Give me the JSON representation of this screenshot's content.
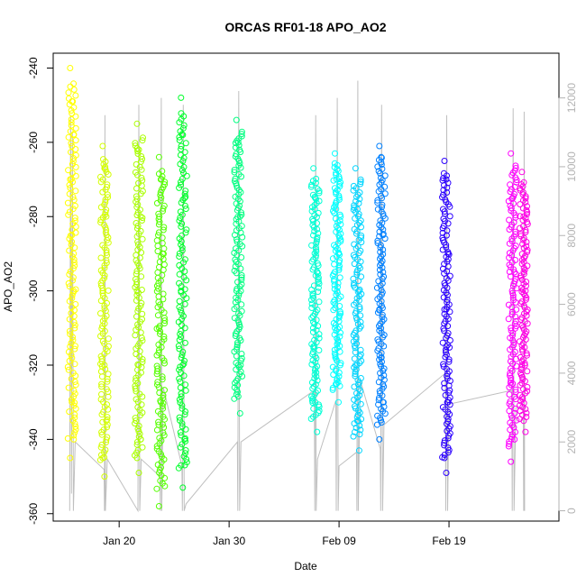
{
  "chart_data": {
    "type": "scatter",
    "title": "ORCAS RF01-18 APO_AO2",
    "xlabel": "Date",
    "ylabel": "APO_AO2",
    "x_axis": {
      "start": "2016-01-14",
      "end": "2016-02-29",
      "ticks": [
        {
          "date": "2016-01-20",
          "label": "Jan 20"
        },
        {
          "date": "2016-01-30",
          "label": "Jan 30"
        },
        {
          "date": "2016-02-09",
          "label": "Feb 09"
        },
        {
          "date": "2016-02-19",
          "label": "Feb 19"
        }
      ]
    },
    "y_left": {
      "ylim": [
        -362,
        -236
      ],
      "ticks": [
        -240,
        -260,
        -280,
        -300,
        -320,
        -340,
        -360
      ]
    },
    "y_right": {
      "ylim": [
        -300,
        13300
      ],
      "ticks": [
        0,
        2000,
        4000,
        6000,
        8000,
        10000,
        12000
      ],
      "color": "#b3b3b3"
    },
    "grid": false,
    "flights": [
      {
        "date": "2016-01-15T17:00",
        "color": "#FFFF00",
        "points": [
          {
            "y": -240
          },
          {
            "y": -249
          },
          {
            "y": -258
          },
          {
            "y": -270
          },
          {
            "y": -285
          },
          {
            "y": -300
          },
          {
            "y": -315
          },
          {
            "y": -330
          },
          {
            "y": -340
          },
          {
            "y": -345
          }
        ]
      },
      {
        "date": "2016-01-18T16:00",
        "color": "#D4FF00",
        "points": [
          {
            "y": -261
          },
          {
            "y": -267
          },
          {
            "y": -280
          },
          {
            "y": -300
          },
          {
            "y": -320
          },
          {
            "y": -335
          },
          {
            "y": -345
          },
          {
            "y": -350
          }
        ]
      },
      {
        "date": "2016-01-21T19:00",
        "color": "#AAFF00",
        "points": [
          {
            "y": -255
          },
          {
            "y": -262
          },
          {
            "y": -280
          },
          {
            "y": -300
          },
          {
            "y": -320
          },
          {
            "y": -340
          },
          {
            "y": -345
          },
          {
            "y": -349
          }
        ]
      },
      {
        "date": "2016-01-23T19:00",
        "color": "#55FF00",
        "points": [
          {
            "y": -264
          },
          {
            "y": -270
          },
          {
            "y": -290
          },
          {
            "y": -310
          },
          {
            "y": -330
          },
          {
            "y": -336
          },
          {
            "y": -358
          }
        ]
      },
      {
        "date": "2016-01-25T19:00",
        "color": "#00FF2B",
        "points": [
          {
            "y": -248
          },
          {
            "y": -258
          },
          {
            "y": -275
          },
          {
            "y": -300
          },
          {
            "y": -320
          },
          {
            "y": -340
          },
          {
            "y": -347
          },
          {
            "y": -353
          }
        ]
      },
      {
        "date": "2016-01-30T20:00",
        "color": "#00FF80",
        "points": [
          {
            "y": -254
          },
          {
            "y": -260
          },
          {
            "y": -280
          },
          {
            "y": -300
          },
          {
            "y": -320
          },
          {
            "y": -333
          }
        ]
      },
      {
        "date": "2016-02-06T20:00",
        "color": "#00FFD5",
        "points": [
          {
            "y": -267
          },
          {
            "y": -275
          },
          {
            "y": -295
          },
          {
            "y": -315
          },
          {
            "y": -330
          },
          {
            "y": -338
          }
        ]
      },
      {
        "date": "2016-02-08T19:00",
        "color": "#00FFFF",
        "points": [
          {
            "y": -263
          },
          {
            "y": -270
          },
          {
            "y": -290
          },
          {
            "y": -310
          },
          {
            "y": -325
          },
          {
            "y": -330
          }
        ]
      },
      {
        "date": "2016-02-10T16:00",
        "color": "#00D5FF",
        "points": [
          {
            "y": -267
          },
          {
            "y": -278
          },
          {
            "y": -300
          },
          {
            "y": -320
          },
          {
            "y": -335
          },
          {
            "y": -343
          }
        ]
      },
      {
        "date": "2016-02-12T20:00",
        "color": "#0080FF",
        "points": [
          {
            "y": -261
          },
          {
            "y": -264
          },
          {
            "y": -285
          },
          {
            "y": -305
          },
          {
            "y": -318
          },
          {
            "y": -330
          },
          {
            "y": -340
          }
        ]
      },
      {
        "date": "2016-02-18T18:00",
        "color": "#2B00FF",
        "points": [
          {
            "y": -265
          },
          {
            "y": -270
          },
          {
            "y": -290
          },
          {
            "y": -305
          },
          {
            "y": -315
          },
          {
            "y": -330
          },
          {
            "y": -345
          },
          {
            "y": -349
          }
        ]
      },
      {
        "date": "2016-02-24T19:00",
        "color": "#FF00FF",
        "points": [
          {
            "y": -263
          },
          {
            "y": -275
          },
          {
            "y": -295
          },
          {
            "y": -310
          },
          {
            "y": -325
          },
          {
            "y": -340
          },
          {
            "y": -346
          }
        ]
      },
      {
        "date": "2016-02-25T19:00",
        "color": "#FF00E6",
        "points": [
          {
            "y": -268
          },
          {
            "y": -280
          },
          {
            "y": -300
          },
          {
            "y": -320
          },
          {
            "y": -335
          },
          {
            "y": -338
          }
        ]
      }
    ],
    "altitude_series": {
      "name": "",
      "axis": "right",
      "color": "#bfbfbf",
      "points": [
        {
          "x": "2016-01-15T12:00",
          "y": 0
        },
        {
          "x": "2016-01-15T14:00",
          "y": 11500
        },
        {
          "x": "2016-01-15T16:00",
          "y": 500
        },
        {
          "x": "2016-01-15T18:00",
          "y": 11000
        },
        {
          "x": "2016-01-15T20:00",
          "y": 0
        },
        {
          "x": "2016-01-16T00:00",
          "y": 2000
        },
        {
          "x": "2016-01-18T15:00",
          "y": 1200
        },
        {
          "x": "2016-01-18T16:00",
          "y": 0
        },
        {
          "x": "2016-01-18T17:00",
          "y": 11500
        },
        {
          "x": "2016-01-18T18:00",
          "y": 0
        },
        {
          "x": "2016-01-18T22:00",
          "y": 1500
        },
        {
          "x": "2016-01-21T17:00",
          "y": 0
        },
        {
          "x": "2016-01-21T19:00",
          "y": 11800
        },
        {
          "x": "2016-01-21T21:00",
          "y": 0
        },
        {
          "x": "2016-01-22T00:00",
          "y": 1500
        },
        {
          "x": "2016-01-23T17:00",
          "y": 1000
        },
        {
          "x": "2016-01-23T18:00",
          "y": 0
        },
        {
          "x": "2016-01-23T20:00",
          "y": 12000
        },
        {
          "x": "2016-01-23T21:00",
          "y": 0
        },
        {
          "x": "2016-01-24T00:00",
          "y": 3600
        },
        {
          "x": "2016-01-25T17:00",
          "y": 1300
        },
        {
          "x": "2016-01-25T18:00",
          "y": 0
        },
        {
          "x": "2016-01-25T20:00",
          "y": 11800
        },
        {
          "x": "2016-01-25T22:00",
          "y": 0
        },
        {
          "x": "2016-01-26T02:00",
          "y": 200
        },
        {
          "x": "2016-01-30T18:00",
          "y": 2000
        },
        {
          "x": "2016-01-30T19:00",
          "y": 0
        },
        {
          "x": "2016-01-30T21:00",
          "y": 12200
        },
        {
          "x": "2016-01-30T23:00",
          "y": 0
        },
        {
          "x": "2016-01-31T02:00",
          "y": 2000
        },
        {
          "x": "2016-02-06T18:00",
          "y": 3500
        },
        {
          "x": "2016-02-06T19:00",
          "y": 0
        },
        {
          "x": "2016-02-06T21:00",
          "y": 11500
        },
        {
          "x": "2016-02-06T22:00",
          "y": 0
        },
        {
          "x": "2016-02-07T01:00",
          "y": 1500
        },
        {
          "x": "2016-02-08T17:00",
          "y": 3200
        },
        {
          "x": "2016-02-08T18:00",
          "y": 0
        },
        {
          "x": "2016-02-08T20:00",
          "y": 12000
        },
        {
          "x": "2016-02-08T22:00",
          "y": 0
        },
        {
          "x": "2016-02-09T00:00",
          "y": 1300
        },
        {
          "x": "2016-02-10T14:00",
          "y": 1700
        },
        {
          "x": "2016-02-10T15:00",
          "y": 0
        },
        {
          "x": "2016-02-10T17:00",
          "y": 12500
        },
        {
          "x": "2016-02-10T18:00",
          "y": 0
        },
        {
          "x": "2016-02-10T22:00",
          "y": 3800
        },
        {
          "x": "2016-02-12T18:00",
          "y": 1800
        },
        {
          "x": "2016-02-12T19:00",
          "y": 0
        },
        {
          "x": "2016-02-12T21:00",
          "y": 11800
        },
        {
          "x": "2016-02-12T23:00",
          "y": 0
        },
        {
          "x": "2016-02-13T02:00",
          "y": 2500
        },
        {
          "x": "2016-02-18T16:00",
          "y": 4000
        },
        {
          "x": "2016-02-18T17:00",
          "y": 0
        },
        {
          "x": "2016-02-18T19:00",
          "y": 11500
        },
        {
          "x": "2016-02-18T21:00",
          "y": 0
        },
        {
          "x": "2016-02-19T00:00",
          "y": 3100
        },
        {
          "x": "2016-02-24T17:00",
          "y": 3500
        },
        {
          "x": "2016-02-24T18:00",
          "y": 0
        },
        {
          "x": "2016-02-24T20:00",
          "y": 11700
        },
        {
          "x": "2016-02-24T22:00",
          "y": 0
        },
        {
          "x": "2016-02-25T02:00",
          "y": 3000
        },
        {
          "x": "2016-02-25T18:00",
          "y": 3000
        },
        {
          "x": "2016-02-25T19:00",
          "y": 0
        },
        {
          "x": "2016-02-25T20:00",
          "y": 11600
        },
        {
          "x": "2016-02-25T21:00",
          "y": 0
        }
      ]
    }
  }
}
